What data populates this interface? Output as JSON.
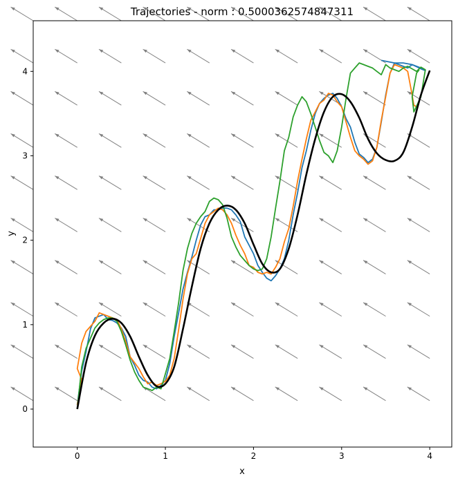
{
  "chart_data": {
    "type": "line",
    "title": "Trajectories - norm : 0.5000362574847311",
    "xlabel": "x",
    "ylabel": "y",
    "xlim": [
      -0.5,
      4.25
    ],
    "ylim": [
      -0.45,
      4.6
    ],
    "xticks": [
      0,
      1,
      2,
      3,
      4
    ],
    "yticks": [
      0,
      1,
      2,
      3,
      4
    ],
    "x_tick_labels": [
      "0",
      "1",
      "2",
      "3",
      "4"
    ],
    "y_tick_labels": [
      "0",
      "1",
      "2",
      "3",
      "4"
    ],
    "grid": false,
    "legend": "none",
    "vector_field": {
      "direction": [
        -0.85,
        0.52
      ],
      "x_positions": [
        -0.5,
        0.0,
        0.5,
        1.0,
        1.5,
        2.0,
        2.5,
        3.0,
        3.5,
        4.0
      ],
      "y_positions": [
        4.6,
        4.1,
        3.6,
        3.1,
        2.6,
        2.1,
        1.6,
        1.1,
        0.6,
        0.1
      ],
      "color": "#808080"
    },
    "reference_path": {
      "color": "#000000",
      "x": [
        0.0,
        0.1,
        0.2,
        0.3,
        0.4,
        0.5,
        0.6,
        0.7,
        0.8,
        0.9,
        1.0,
        1.1,
        1.2,
        1.3,
        1.4,
        1.5,
        1.6,
        1.7,
        1.8,
        1.9,
        2.0,
        2.1,
        2.2,
        2.3,
        2.4,
        2.5,
        2.6,
        2.7,
        2.8,
        2.9,
        3.0,
        3.1,
        3.2,
        3.3,
        3.4,
        3.5,
        3.6,
        3.7,
        3.8,
        3.9,
        4.0
      ],
      "y": [
        0.0,
        0.55,
        0.87,
        1.02,
        1.07,
        1.02,
        0.86,
        0.62,
        0.4,
        0.27,
        0.3,
        0.5,
        0.95,
        1.45,
        1.9,
        2.2,
        2.36,
        2.41,
        2.36,
        2.2,
        1.95,
        1.72,
        1.62,
        1.66,
        1.9,
        2.3,
        2.78,
        3.2,
        3.52,
        3.7,
        3.73,
        3.64,
        3.45,
        3.2,
        3.03,
        2.95,
        2.94,
        3.04,
        3.34,
        3.72,
        4.01
      ]
    },
    "series": [
      {
        "color": "#1f77b4",
        "x": [
          0.0,
          0.05,
          0.1,
          0.15,
          0.2,
          0.25,
          0.3,
          0.35,
          0.4,
          0.45,
          0.5,
          0.55,
          0.6,
          0.65,
          0.7,
          0.75,
          0.8,
          0.85,
          0.9,
          0.95,
          1.0,
          1.05,
          1.1,
          1.15,
          1.2,
          1.25,
          1.3,
          1.35,
          1.4,
          1.45,
          1.5,
          1.55,
          1.6,
          1.65,
          1.7,
          1.75,
          1.8,
          1.85,
          1.9,
          1.95,
          2.0,
          2.05,
          2.1,
          2.15,
          2.2,
          2.25,
          2.3,
          2.35,
          2.4,
          2.45,
          2.5,
          2.55,
          2.6,
          2.65,
          2.7,
          2.75,
          2.8,
          2.85,
          2.9,
          2.95,
          3.0,
          3.05,
          3.1,
          3.15,
          3.2,
          3.25,
          3.3,
          3.35,
          3.4,
          3.45,
          3.5,
          3.55,
          3.6,
          3.65,
          3.7,
          3.75,
          3.8,
          3.85,
          3.9,
          3.95,
          3.9,
          3.8,
          3.7,
          3.6,
          3.5,
          3.45
        ],
        "y": [
          0.05,
          0.45,
          0.68,
          0.95,
          1.08,
          1.1,
          1.12,
          1.06,
          1.05,
          1.02,
          0.96,
          0.86,
          0.62,
          0.52,
          0.4,
          0.34,
          0.32,
          0.26,
          0.24,
          0.28,
          0.34,
          0.54,
          0.86,
          1.14,
          1.42,
          1.62,
          1.8,
          2.0,
          2.18,
          2.28,
          2.3,
          2.36,
          2.36,
          2.38,
          2.38,
          2.36,
          2.3,
          2.22,
          2.04,
          1.94,
          1.84,
          1.7,
          1.62,
          1.55,
          1.52,
          1.58,
          1.66,
          1.78,
          2.0,
          2.3,
          2.56,
          2.86,
          3.06,
          3.3,
          3.5,
          3.62,
          3.68,
          3.72,
          3.74,
          3.68,
          3.58,
          3.44,
          3.34,
          3.16,
          3.02,
          2.98,
          2.92,
          2.96,
          3.1,
          3.4,
          3.72,
          3.98,
          4.1,
          4.08,
          4.06,
          4.04,
          4.08,
          4.06,
          4.04,
          4.01,
          4.03,
          4.08,
          4.1,
          4.1,
          4.12,
          4.13
        ]
      },
      {
        "color": "#ff7f0e",
        "x": [
          0.0,
          0.05,
          0.0,
          0.05,
          0.1,
          0.2,
          0.25,
          0.3,
          0.35,
          0.45,
          0.5,
          0.55,
          0.6,
          0.7,
          0.75,
          0.8,
          0.85,
          0.9,
          0.95,
          1.0,
          1.05,
          1.1,
          1.15,
          1.2,
          1.25,
          1.3,
          1.35,
          1.4,
          1.45,
          1.5,
          1.55,
          1.6,
          1.65,
          1.7,
          1.75,
          1.8,
          1.85,
          1.9,
          1.95,
          2.0,
          2.05,
          2.1,
          2.15,
          2.2,
          2.25,
          2.3,
          2.35,
          2.4,
          2.45,
          2.5,
          2.55,
          2.6,
          2.65,
          2.7,
          2.75,
          2.8,
          2.85,
          2.9,
          2.95,
          3.0,
          3.05,
          3.1,
          3.15,
          3.2,
          3.25,
          3.3,
          3.35,
          3.4,
          3.45,
          3.5,
          3.55,
          3.6,
          3.65,
          3.7,
          3.75,
          3.8,
          3.82,
          3.85
        ],
        "y": [
          0.05,
          0.35,
          0.48,
          0.78,
          0.92,
          1.04,
          1.14,
          1.12,
          1.1,
          1.06,
          0.95,
          0.8,
          0.62,
          0.48,
          0.38,
          0.3,
          0.32,
          0.28,
          0.3,
          0.33,
          0.4,
          0.6,
          0.94,
          1.3,
          1.6,
          1.78,
          1.84,
          2.02,
          2.2,
          2.3,
          2.34,
          2.38,
          2.36,
          2.3,
          2.2,
          2.06,
          1.94,
          1.84,
          1.7,
          1.68,
          1.62,
          1.6,
          1.62,
          1.6,
          1.68,
          1.78,
          1.98,
          2.14,
          2.4,
          2.7,
          2.96,
          3.2,
          3.42,
          3.52,
          3.62,
          3.66,
          3.74,
          3.72,
          3.64,
          3.58,
          3.4,
          3.22,
          3.06,
          3.0,
          2.96,
          2.9,
          2.94,
          3.1,
          3.42,
          3.7,
          3.98,
          4.08,
          4.06,
          4.04,
          4.0,
          3.72,
          3.6,
          3.58
        ]
      },
      {
        "color": "#2ca02c",
        "x": [
          0.0,
          0.05,
          0.1,
          0.15,
          0.2,
          0.25,
          0.3,
          0.35,
          0.4,
          0.45,
          0.5,
          0.55,
          0.6,
          0.65,
          0.7,
          0.75,
          0.8,
          0.85,
          0.9,
          0.95,
          1.0,
          1.05,
          1.1,
          1.15,
          1.2,
          1.25,
          1.3,
          1.35,
          1.4,
          1.45,
          1.5,
          1.55,
          1.6,
          1.65,
          1.7,
          1.75,
          1.8,
          1.85,
          1.9,
          1.95,
          2.0,
          2.05,
          2.1,
          2.15,
          2.2,
          2.25,
          2.3,
          2.35,
          2.4,
          2.45,
          2.5,
          2.55,
          2.6,
          2.65,
          2.7,
          2.75,
          2.8,
          2.85,
          2.9,
          2.95,
          3.0,
          3.05,
          3.1,
          3.15,
          3.2,
          3.25,
          3.3,
          3.35,
          3.4,
          3.45,
          3.5,
          3.55,
          3.6,
          3.65,
          3.7,
          3.75,
          3.8,
          3.85,
          3.9,
          3.95,
          3.9,
          3.82,
          3.8,
          3.85,
          3.88
        ],
        "y": [
          0.0,
          0.5,
          0.72,
          0.84,
          0.96,
          1.02,
          1.06,
          1.08,
          1.08,
          1.04,
          0.92,
          0.76,
          0.58,
          0.44,
          0.34,
          0.26,
          0.24,
          0.22,
          0.26,
          0.24,
          0.42,
          0.6,
          0.92,
          1.26,
          1.64,
          1.9,
          2.08,
          2.2,
          2.28,
          2.34,
          2.46,
          2.5,
          2.48,
          2.42,
          2.26,
          2.04,
          1.92,
          1.82,
          1.76,
          1.7,
          1.66,
          1.64,
          1.66,
          1.78,
          2.04,
          2.38,
          2.7,
          3.06,
          3.22,
          3.46,
          3.6,
          3.7,
          3.64,
          3.5,
          3.34,
          3.18,
          3.04,
          3.0,
          2.92,
          3.06,
          3.34,
          3.68,
          3.98,
          4.04,
          4.1,
          4.08,
          4.06,
          4.04,
          4.0,
          3.96,
          4.08,
          4.04,
          4.02,
          4.0,
          4.04,
          4.06,
          4.03,
          4.0,
          4.05,
          4.02,
          3.7,
          3.52,
          3.7,
          3.98,
          4.02
        ]
      }
    ]
  }
}
